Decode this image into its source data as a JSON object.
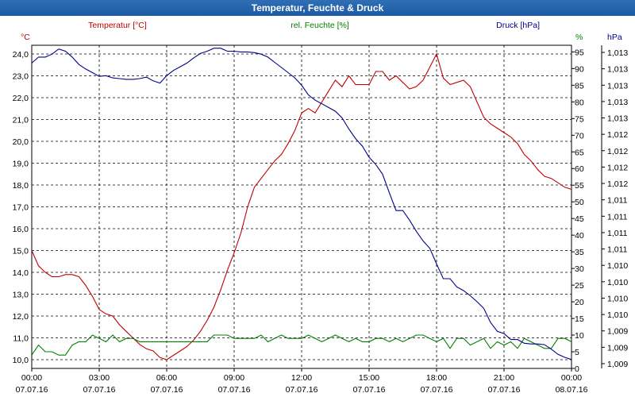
{
  "window": {
    "title": "Temperatur, Feuchte & Druck"
  },
  "chart_data": {
    "type": "line",
    "title": "Temperatur, Feuchte & Druck",
    "xlabel": "",
    "x_ticks": [
      {
        "t": 0,
        "time": "00:00",
        "date": "07.07.16"
      },
      {
        "t": 3,
        "time": "03:00",
        "date": "07.07.16"
      },
      {
        "t": 6,
        "time": "06:00",
        "date": "07.07.16"
      },
      {
        "t": 9,
        "time": "09:00",
        "date": "07.07.16"
      },
      {
        "t": 12,
        "time": "12:00",
        "date": "07.07.16"
      },
      {
        "t": 15,
        "time": "15:00",
        "date": "07.07.16"
      },
      {
        "t": 18,
        "time": "18:00",
        "date": "07.07.16"
      },
      {
        "t": 21,
        "time": "21:00",
        "date": "07.07.16"
      },
      {
        "t": 24,
        "time": "00:00",
        "date": "08.07.16"
      }
    ],
    "xlim": [
      0,
      24
    ],
    "axes": {
      "temperature": {
        "label": "Temperatur [°C]",
        "unit": "°C",
        "color": "#c00000",
        "ylim": [
          9.6,
          24.4
        ],
        "ticks": [
          "10,0",
          "11,0",
          "12,0",
          "13,0",
          "14,0",
          "15,0",
          "16,0",
          "17,0",
          "18,0",
          "19,0",
          "20,0",
          "21,0",
          "22,0",
          "23,0",
          "24,0"
        ]
      },
      "humidity": {
        "label": "rel. Feuchte [%]",
        "unit": "%",
        "color": "#008000",
        "ylim": [
          0,
          97
        ],
        "ticks": [
          "0",
          "5",
          "10",
          "15",
          "20",
          "25",
          "30",
          "35",
          "40",
          "45",
          "50",
          "55",
          "60",
          "65",
          "70",
          "75",
          "80",
          "85",
          "90",
          "95"
        ]
      },
      "pressure": {
        "label": "Druck [hPa]",
        "unit": "hPa",
        "color": "#00008b",
        "ticks": [
          "1,009",
          "1,009",
          "1,009",
          "1,010",
          "1,010",
          "1,010",
          "1,010",
          "1,011",
          "1,011",
          "1,011",
          "1,011",
          "1,012",
          "1,012",
          "1,012",
          "1,012",
          "1,013",
          "1,013",
          "1,013",
          "1,013",
          "1,013"
        ]
      }
    },
    "series": [
      {
        "name": "Temperatur [°C]",
        "axis": "temperature",
        "color": "#c00000",
        "x": [
          0,
          0.3,
          0.6,
          0.9,
          1.2,
          1.5,
          1.8,
          2.1,
          2.4,
          2.7,
          3.0,
          3.3,
          3.6,
          3.9,
          4.2,
          4.5,
          4.8,
          5.1,
          5.4,
          5.7,
          6.0,
          6.3,
          6.6,
          6.9,
          7.2,
          7.5,
          7.8,
          8.1,
          8.4,
          8.7,
          9.0,
          9.3,
          9.6,
          9.9,
          10.2,
          10.5,
          10.8,
          11.1,
          11.4,
          11.7,
          12.0,
          12.3,
          12.6,
          12.9,
          13.2,
          13.5,
          13.8,
          14.1,
          14.4,
          14.7,
          15.0,
          15.3,
          15.6,
          15.9,
          16.2,
          16.5,
          16.8,
          17.1,
          17.4,
          17.7,
          18.0,
          18.3,
          18.6,
          18.9,
          19.2,
          19.5,
          19.8,
          20.1,
          20.4,
          20.7,
          21.0,
          21.3,
          21.6,
          21.9,
          22.2,
          22.5,
          22.8,
          23.1,
          23.4,
          23.7,
          24.0
        ],
        "values": [
          15.0,
          14.3,
          14.0,
          13.8,
          13.8,
          13.9,
          13.9,
          13.8,
          13.4,
          12.9,
          12.3,
          12.1,
          12.0,
          11.6,
          11.3,
          11.0,
          10.7,
          10.5,
          10.4,
          10.1,
          10.0,
          10.2,
          10.4,
          10.6,
          10.9,
          11.3,
          11.8,
          12.4,
          13.2,
          14.1,
          14.9,
          15.8,
          17.0,
          17.9,
          18.3,
          18.7,
          19.1,
          19.4,
          19.9,
          20.5,
          21.3,
          21.5,
          21.3,
          21.8,
          22.3,
          22.8,
          22.5,
          23.0,
          22.6,
          22.6,
          22.6,
          23.2,
          23.2,
          22.8,
          23.0,
          22.7,
          22.4,
          22.5,
          22.8,
          23.4,
          24.0,
          22.9,
          22.6,
          22.7,
          22.8,
          22.5,
          21.8,
          21.1,
          20.8,
          20.6,
          20.4,
          20.2,
          19.9,
          19.4,
          19.1,
          18.7,
          18.4,
          18.3,
          18.1,
          17.9,
          17.8
        ]
      },
      {
        "name": "rel. Feuchte [%]",
        "axis": "humidity",
        "color": "#008000",
        "x": [
          0,
          0.3,
          0.6,
          0.9,
          1.2,
          1.5,
          1.8,
          2.1,
          2.4,
          2.7,
          3.0,
          3.3,
          3.6,
          3.9,
          4.2,
          4.5,
          4.8,
          5.1,
          5.4,
          5.7,
          6.0,
          6.3,
          6.6,
          6.9,
          7.2,
          7.5,
          7.8,
          8.1,
          8.4,
          8.7,
          9.0,
          9.3,
          9.6,
          9.9,
          10.2,
          10.5,
          10.8,
          11.1,
          11.4,
          11.7,
          12.0,
          12.3,
          12.6,
          12.9,
          13.2,
          13.5,
          13.8,
          14.1,
          14.4,
          14.7,
          15.0,
          15.3,
          15.6,
          15.9,
          16.2,
          16.5,
          16.8,
          17.1,
          17.4,
          17.7,
          18.0,
          18.3,
          18.6,
          18.9,
          19.2,
          19.5,
          19.8,
          20.1,
          20.4,
          20.7,
          21.0,
          21.3,
          21.6,
          21.9,
          22.2,
          22.5,
          22.8,
          23.1,
          23.4,
          23.7,
          24.0
        ],
        "values": [
          4,
          7,
          5,
          5,
          4,
          4,
          7,
          8,
          8,
          10,
          9,
          8,
          10,
          8,
          9,
          9,
          8,
          8,
          8,
          8,
          8,
          8,
          8,
          8,
          8,
          8,
          8,
          10,
          10,
          10,
          9,
          9,
          9,
          9,
          10,
          8,
          9,
          10,
          9,
          9,
          9,
          10,
          9,
          8,
          9,
          10,
          9,
          8,
          9,
          8,
          8,
          9,
          9,
          8,
          9,
          8,
          9,
          10,
          10,
          9,
          8,
          9,
          6,
          9,
          9,
          7,
          8,
          9,
          6,
          8,
          7,
          8,
          6,
          9,
          8,
          7,
          6,
          6,
          9,
          9,
          8
        ]
      },
      {
        "name": "Druck [hPa]",
        "axis": "pressure",
        "color": "#00008b",
        "x": [
          0,
          0.3,
          0.6,
          0.9,
          1.2,
          1.5,
          1.8,
          2.1,
          2.4,
          2.7,
          3.0,
          3.3,
          3.6,
          3.9,
          4.2,
          4.5,
          4.8,
          5.1,
          5.4,
          5.7,
          6.0,
          6.3,
          6.6,
          6.9,
          7.2,
          7.5,
          7.8,
          8.1,
          8.4,
          8.7,
          9.0,
          9.3,
          9.6,
          9.9,
          10.2,
          10.5,
          10.8,
          11.1,
          11.4,
          11.7,
          12.0,
          12.3,
          12.6,
          12.9,
          13.2,
          13.5,
          13.8,
          14.1,
          14.4,
          14.7,
          15.0,
          15.3,
          15.6,
          15.9,
          16.2,
          16.5,
          16.8,
          17.1,
          17.4,
          17.7,
          18.0,
          18.3,
          18.6,
          18.9,
          19.2,
          19.5,
          19.8,
          20.1,
          20.4,
          20.7,
          21.0,
          21.3,
          21.6,
          21.9,
          22.2,
          22.5,
          22.8,
          23.1,
          23.4,
          23.7,
          24.0
        ],
        "values": [
          1.013,
          1.01308,
          1.01308,
          1.01312,
          1.01319,
          1.01316,
          1.01308,
          1.01298,
          1.01292,
          1.01287,
          1.01282,
          1.01283,
          1.0128,
          1.01279,
          1.01278,
          1.01278,
          1.01279,
          1.01281,
          1.01276,
          1.01273,
          1.01283,
          1.0129,
          1.01295,
          1.013,
          1.01307,
          1.01313,
          1.01316,
          1.0132,
          1.0132,
          1.01316,
          1.01316,
          1.01315,
          1.01315,
          1.01314,
          1.01312,
          1.01308,
          1.01301,
          1.01294,
          1.01287,
          1.0128,
          1.0127,
          1.01257,
          1.0125,
          1.01245,
          1.0124,
          1.01235,
          1.01226,
          1.01211,
          1.01198,
          1.01188,
          1.01173,
          1.01163,
          1.0115,
          1.01125,
          1.01101,
          1.01101,
          1.01088,
          1.01073,
          1.0106,
          1.0105,
          1.01029,
          1.01009,
          1.01009,
          1.00998,
          1.00993,
          1.00986,
          1.00978,
          1.00969,
          1.0095,
          1.00938,
          1.00935,
          1.00927,
          1.00927,
          1.00922,
          1.00921,
          1.00921,
          1.0092,
          1.00914,
          1.00907,
          1.00903,
          1.009
        ]
      }
    ],
    "pressure_range": [
      1.00888,
      1.01324
    ],
    "grid": true,
    "legend": "top"
  }
}
